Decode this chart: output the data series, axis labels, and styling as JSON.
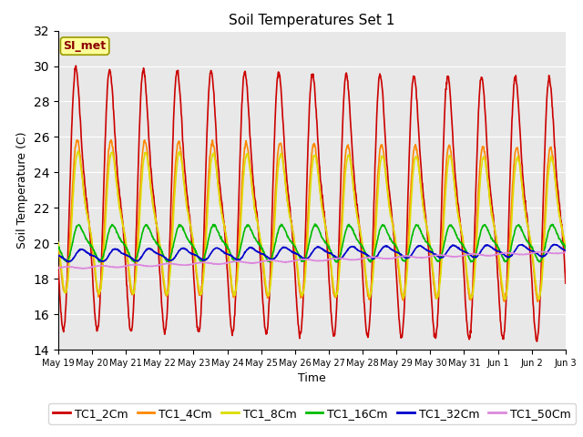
{
  "title": "Soil Temperatures Set 1",
  "xlabel": "Time",
  "ylabel": "Soil Temperature (C)",
  "ylim": [
    14,
    32
  ],
  "annotation": "SI_met",
  "xtick_labels": [
    "May 19",
    "May 20",
    "May 21",
    "May 22",
    "May 23",
    "May 24",
    "May 25",
    "May 26",
    "May 27",
    "May 28",
    "May 29",
    "May 30",
    "May 31",
    "Jun 1",
    "Jun 2",
    "Jun 3"
  ],
  "series": {
    "TC1_2Cm": {
      "color": "#CC0000",
      "lw": 1.2
    },
    "TC1_4Cm": {
      "color": "#FF8800",
      "lw": 1.2
    },
    "TC1_8Cm": {
      "color": "#DDDD00",
      "lw": 1.2
    },
    "TC1_16Cm": {
      "color": "#00BB00",
      "lw": 1.2
    },
    "TC1_32Cm": {
      "color": "#0000CC",
      "lw": 1.2
    },
    "TC1_50Cm": {
      "color": "#DD88DD",
      "lw": 1.2
    }
  },
  "background_color": "#E8E8E8",
  "fig_background": "#FFFFFF",
  "title_fontsize": 11,
  "axis_fontsize": 9,
  "tick_fontsize": 8,
  "legend_fontsize": 9
}
